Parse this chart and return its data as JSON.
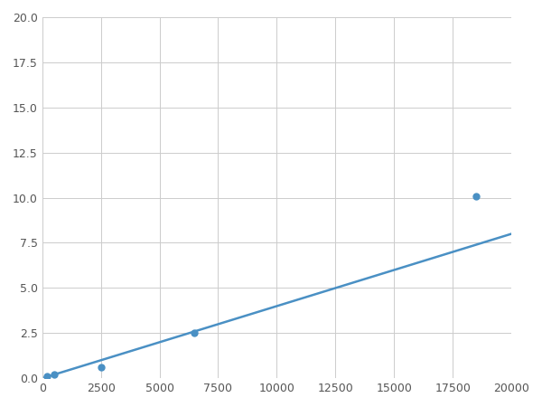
{
  "x": [
    200,
    500,
    2500,
    6500,
    18500
  ],
  "y": [
    0.1,
    0.2,
    0.6,
    2.5,
    10.1
  ],
  "line_color": "#4a90c4",
  "marker_color": "#4a90c4",
  "marker_size": 5,
  "xlim": [
    0,
    20000
  ],
  "ylim": [
    0,
    20.0
  ],
  "xticks": [
    0,
    2500,
    5000,
    7500,
    10000,
    12500,
    15000,
    17500,
    20000
  ],
  "yticks": [
    0.0,
    2.5,
    5.0,
    7.5,
    10.0,
    12.5,
    15.0,
    17.5,
    20.0
  ],
  "grid_color": "#cccccc",
  "background_color": "#ffffff",
  "linewidth": 1.8,
  "figsize": [
    6.0,
    4.5
  ],
  "dpi": 100
}
